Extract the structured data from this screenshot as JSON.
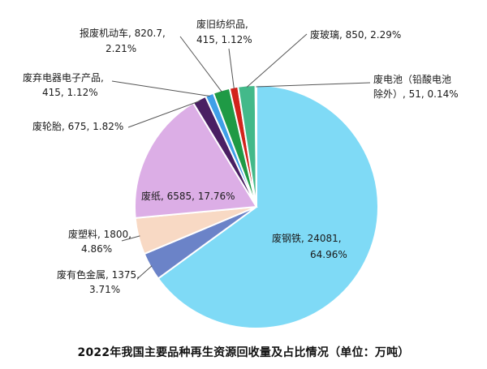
{
  "chart_data": {
    "type": "pie",
    "title": "2022年我国主要品种再生资源回收量及占比情况（单位：万吨）",
    "unit": "万吨",
    "slices": [
      {
        "label": "废钢铁",
        "value": 24081,
        "percent": "64.96%",
        "color": "#7fdaf6"
      },
      {
        "label": "废有色金属",
        "value": 1375,
        "percent": "3.71%",
        "color": "#6b83c8"
      },
      {
        "label": "废塑料",
        "value": 1800,
        "percent": "4.86%",
        "color": "#f8d9c4"
      },
      {
        "label": "废纸",
        "value": 6585,
        "percent": "17.76%",
        "color": "#dcaee6"
      },
      {
        "label": "废轮胎",
        "value": 675,
        "percent": "1.82%",
        "color": "#4a1f63"
      },
      {
        "label": "废弃电器电子产品",
        "value": 415,
        "percent": "1.12%",
        "color": "#3f9fe8"
      },
      {
        "label": "报废机动车",
        "value": 820.7,
        "percent": "2.21%",
        "color": "#1f9a45"
      },
      {
        "label": "废旧纺织品",
        "value": 415,
        "percent": "1.12%",
        "color": "#d2231c"
      },
      {
        "label": "废玻璃",
        "value": 850,
        "percent": "2.29%",
        "color": "#43b98a"
      },
      {
        "label": "废电池（铅酸电池除外）",
        "value": 51,
        "percent": "0.14%",
        "color": "#c9c9c9"
      }
    ],
    "labels": {
      "steel": [
        "废钢铁, 24081,",
        "64.96%"
      ],
      "nonferrous": [
        "废有色金属, 1375,",
        "3.71%"
      ],
      "plastic": [
        "废塑料, 1800,",
        "4.86%"
      ],
      "paper": [
        "废纸, 6585, 17.76%"
      ],
      "tire": [
        "废轮胎, 675, 1.82%"
      ],
      "ewaste": [
        "废弃电器电子产品,",
        "415, 1.12%"
      ],
      "vehicle": [
        "报废机动车, 820.7,",
        "2.21%"
      ],
      "textile": [
        "废旧纺织品,",
        "415, 1.12%"
      ],
      "glass": [
        "废玻璃, 850, 2.29%"
      ],
      "battery": [
        "废电池（铅酸电池",
        "除外）, 51, 0.14%"
      ]
    }
  }
}
